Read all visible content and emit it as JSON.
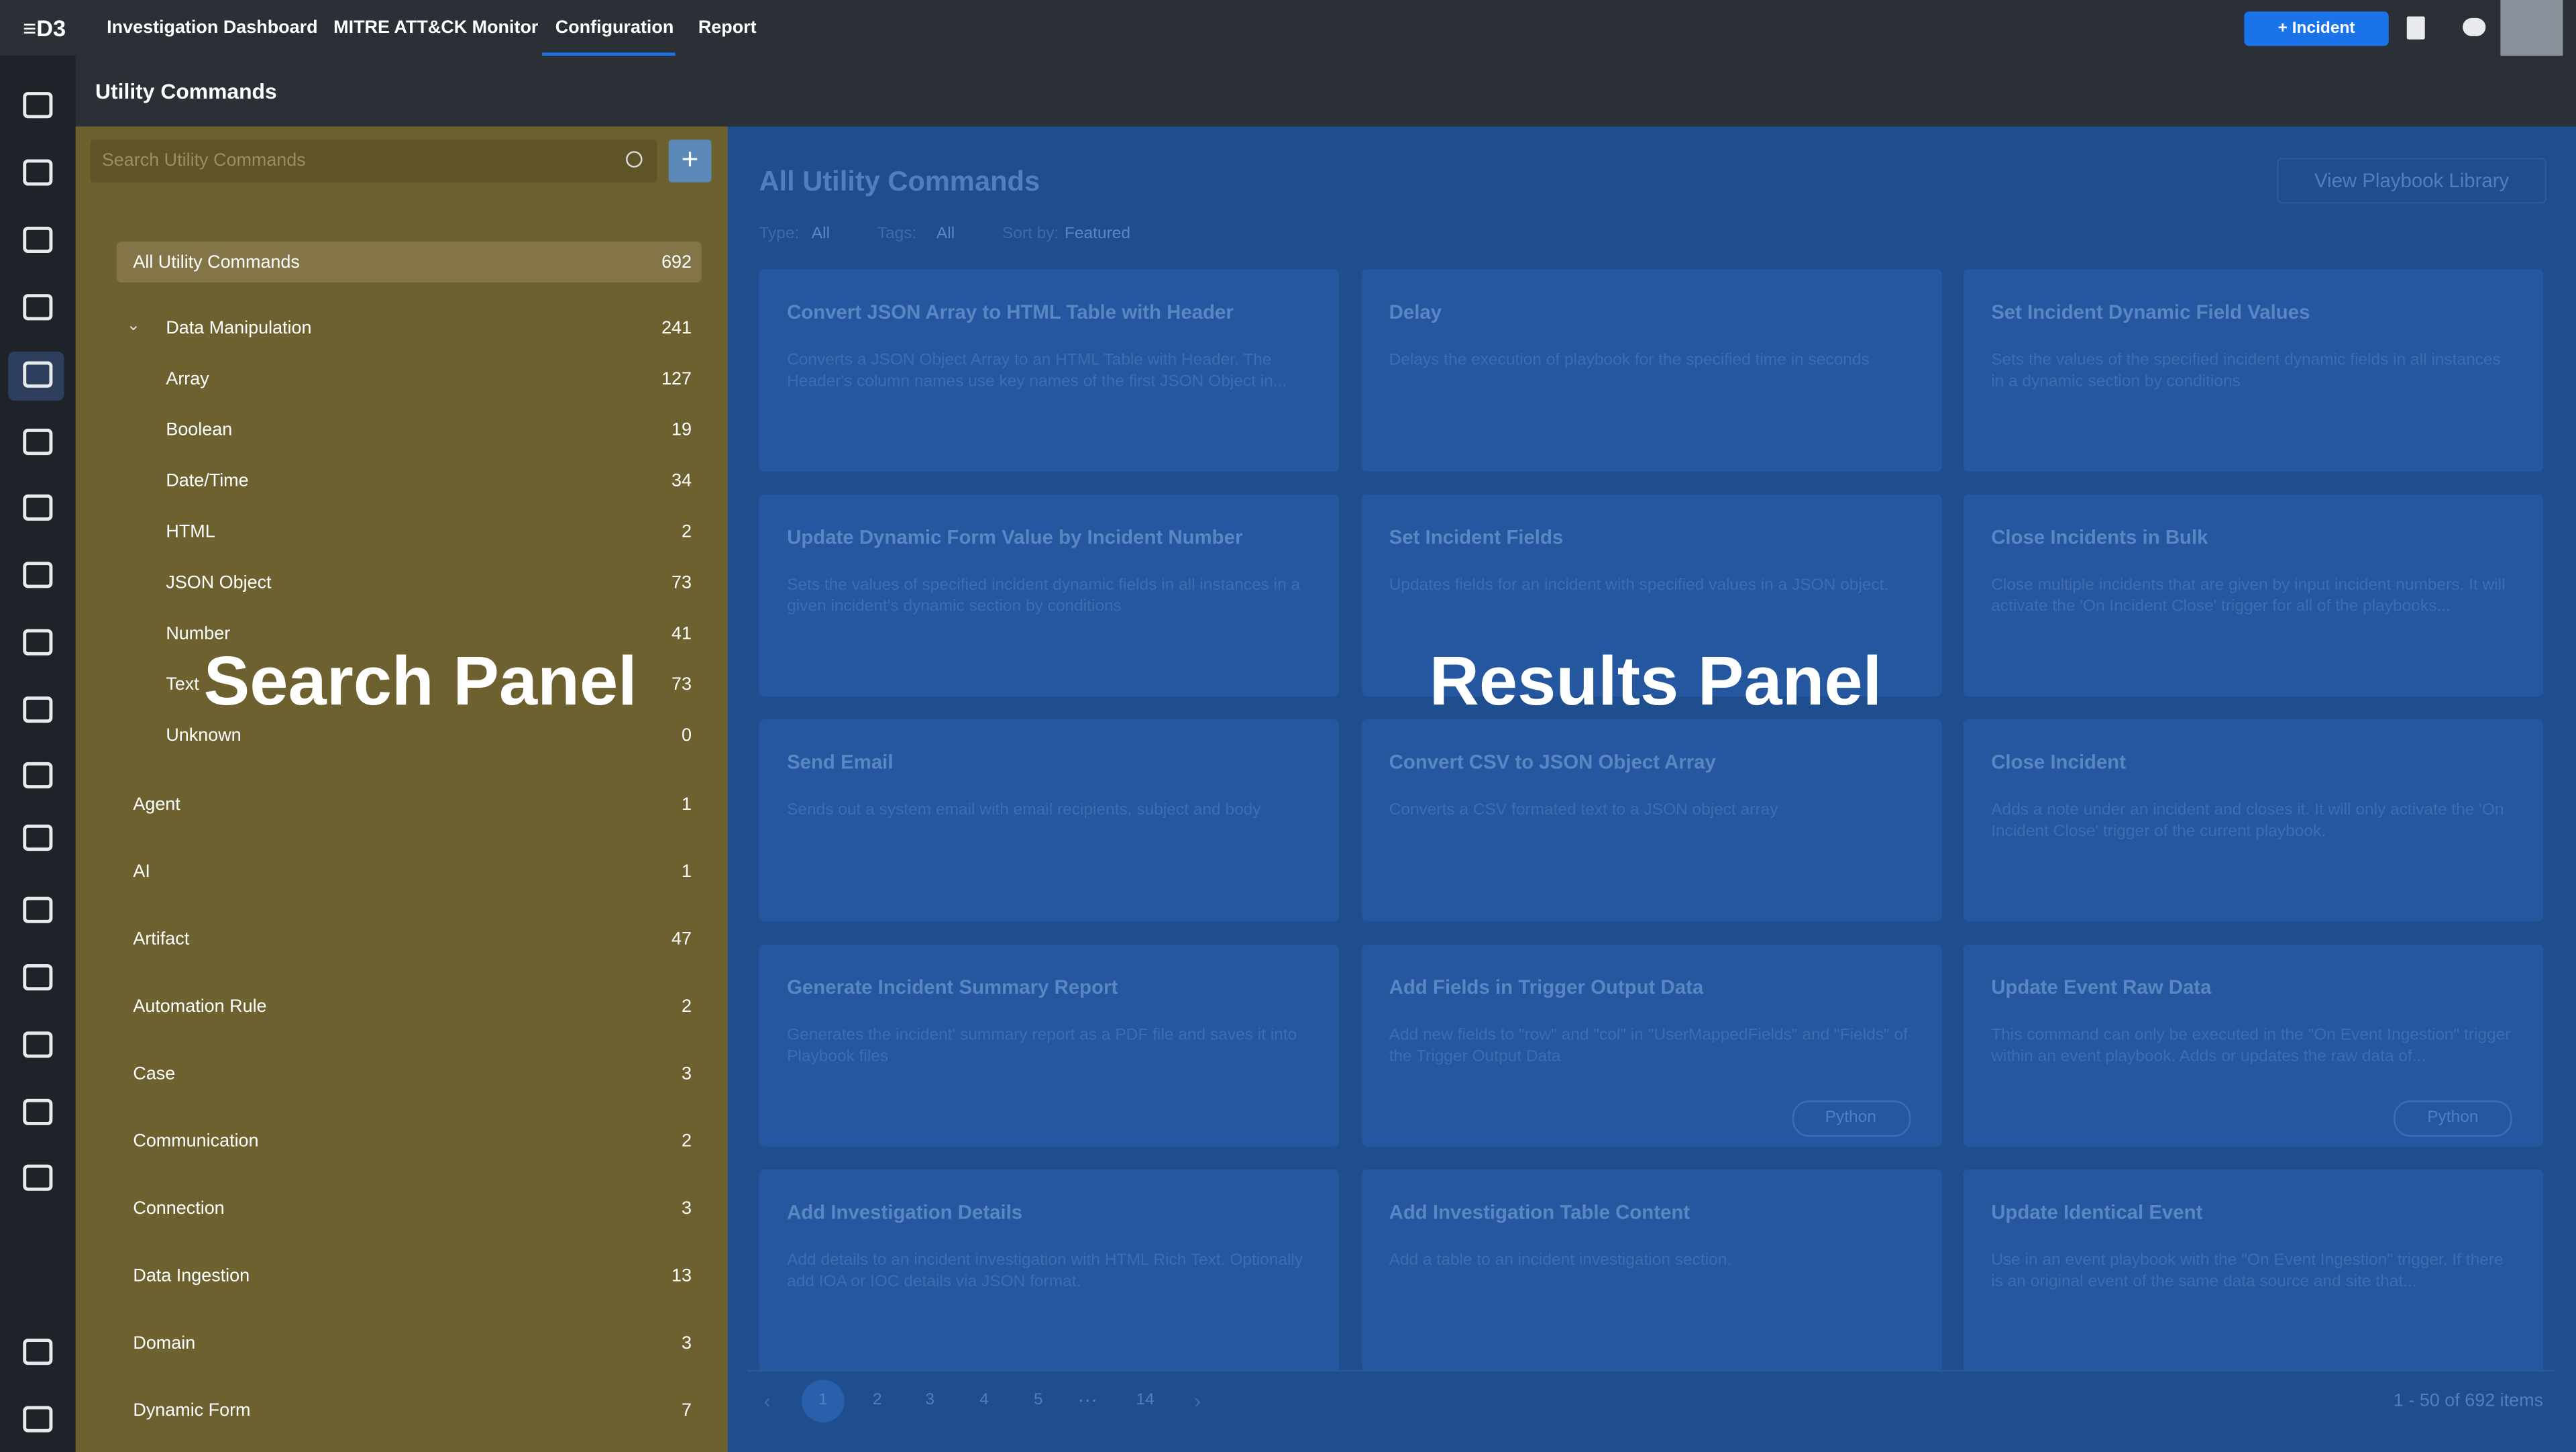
{
  "nav": {
    "logo": "D3",
    "items": [
      "Investigation Dashboard",
      "MITRE ATT&CK Monitor",
      "Configuration",
      "Report"
    ],
    "incident_button": "Incident"
  },
  "page_title": "Utility Commands",
  "search_panel": {
    "placeholder": "Search Utility Commands",
    "overlay_label": "Search Panel",
    "all": {
      "name": "All Utility Commands",
      "count": 692
    },
    "categories": [
      {
        "name": "Data Manipulation",
        "count": 241,
        "children": [
          {
            "name": "Array",
            "count": 127
          },
          {
            "name": "Boolean",
            "count": 19
          },
          {
            "name": "Date/Time",
            "count": 34
          },
          {
            "name": "HTML",
            "count": 2
          },
          {
            "name": "JSON Object",
            "count": 73
          },
          {
            "name": "Number",
            "count": 41
          },
          {
            "name": "Text",
            "count": 73
          },
          {
            "name": "Unknown",
            "count": 0
          }
        ]
      },
      {
        "name": "Agent",
        "count": 1
      },
      {
        "name": "AI",
        "count": 1
      },
      {
        "name": "Artifact",
        "count": 47
      },
      {
        "name": "Automation Rule",
        "count": 2
      },
      {
        "name": "Case",
        "count": 3
      },
      {
        "name": "Communication",
        "count": 2
      },
      {
        "name": "Connection",
        "count": 3
      },
      {
        "name": "Data Ingestion",
        "count": 13
      },
      {
        "name": "Domain",
        "count": 3
      },
      {
        "name": "Dynamic Form",
        "count": 7
      }
    ]
  },
  "results_panel": {
    "title": "All Utility Commands",
    "library_link": "View Playbook Library",
    "overlay_label": "Results Panel",
    "filters": [
      {
        "label": "Type:",
        "value": "All"
      },
      {
        "label": "Tags:",
        "value": "All"
      },
      {
        "label": "Sort by:",
        "value": "Featured"
      }
    ],
    "cards": [
      {
        "title": "Convert JSON Array to HTML Table with Header",
        "description": "Converts a JSON Object Array to an HTML Table with Header. The Header's column names use key names of the first JSON Object in..."
      },
      {
        "title": "Delay",
        "description": "Delays the execution of playbook for the specified time in seconds"
      },
      {
        "title": "Set Incident Dynamic Field Values",
        "description": "Sets the values of the specified incident dynamic fields in all instances in a dynamic section by conditions"
      },
      {
        "title": "Update Dynamic Form Value by Incident Number",
        "description": "Sets the values of specified incident dynamic fields in all instances in a given incident's dynamic section by conditions"
      },
      {
        "title": "Set Incident Fields",
        "description": "Updates fields for an incident with specified values in a JSON object."
      },
      {
        "title": "Close Incidents in Bulk",
        "description": "Close multiple incidents that are given by input incident numbers. It will activate the 'On Incident Close' trigger for all of the playbooks..."
      },
      {
        "title": "Send Email",
        "description": "Sends out a system email with email recipients, subject and body"
      },
      {
        "title": "Convert CSV to JSON Object Array",
        "description": "Converts a CSV formated text to a JSON object array"
      },
      {
        "title": "Close Incident",
        "description": "Adds a note under an incident and closes it. It will only activate the 'On Incident Close' trigger of the current playbook."
      },
      {
        "title": "Generate Incident Summary Report",
        "description": "Generates the incident' summary report as a PDF file and saves it into Playbook files"
      },
      {
        "title": "Add Fields in Trigger Output Data",
        "description": "Add new fields to \"row\" and \"col\" in \"UserMappedFields\" and \"Fields\" of the Trigger Output Data",
        "tag": "Python"
      },
      {
        "title": "Update Event Raw Data",
        "description": "This command can only be executed in the \"On Event Ingestion\" trigger within an event playbook. Adds or updates the raw data of...",
        "tag": "Python"
      },
      {
        "title": "Add Investigation Details",
        "description": "Add details to an incident investigation with HTML Rich Text. Optionally add IOA or IOC details via JSON format."
      },
      {
        "title": "Add Investigation Table Content",
        "description": "Add a table to an incident investigation section."
      },
      {
        "title": "Update Identical Event",
        "description": "Use in an event playbook with the \"On Event Ingestion\" trigger. If there is an original event of the same data source and site that..."
      }
    ],
    "pagination": {
      "pages": [
        1,
        2,
        3,
        4,
        5,
        14
      ]
    },
    "summary": "1 - 50 of 692 items"
  }
}
